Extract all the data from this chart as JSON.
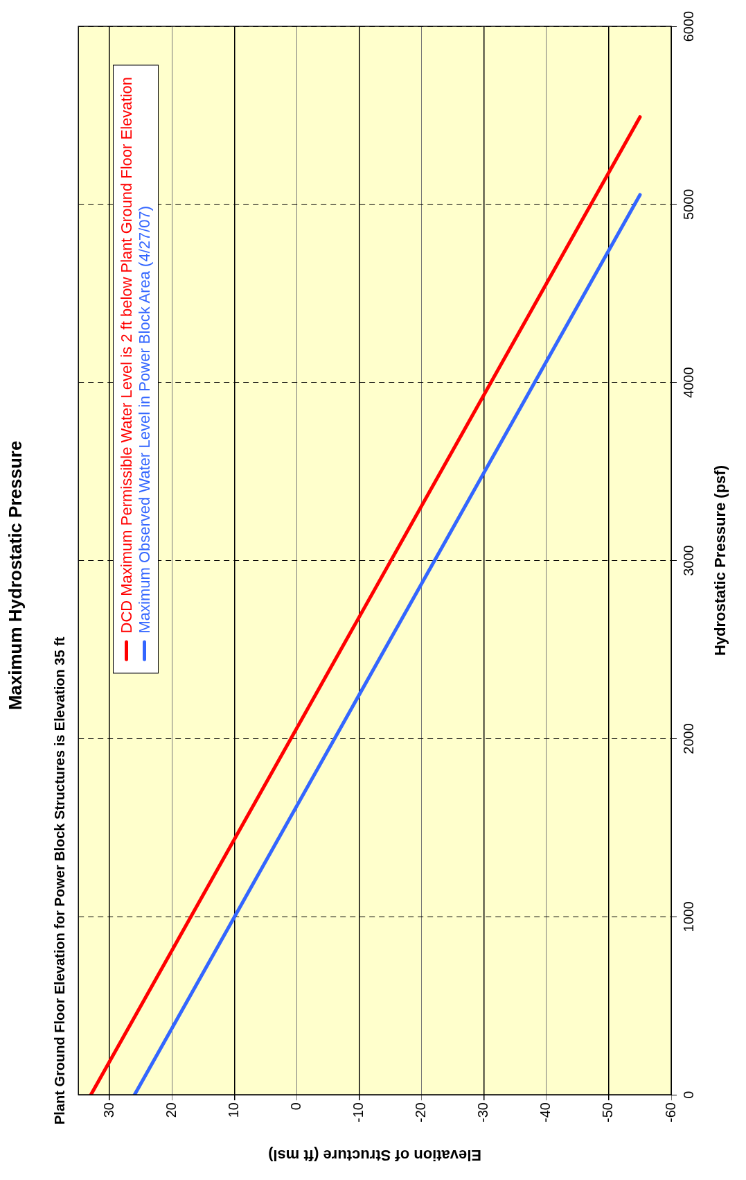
{
  "chart_data": {
    "type": "line",
    "title": "Maximum Hydrostatic Pressure",
    "subtitle": "Plant Ground Floor Elevation for Power Block Structures is Elevation 35 ft",
    "xlabel": "Elevation of Structure (ft msl)",
    "ylabel": "Hydrostatic Pressure (psf)",
    "series": [
      {
        "name": "DCD Maximum Permissible Water Level is 2 ft below Plant Ground Floor Elevation",
        "color": "#ff0000",
        "x": [
          33,
          -55
        ],
        "values": [
          0,
          5491
        ]
      },
      {
        "name": "Maximum Observed Water Level in Power Block Area (4/27/07)",
        "color": "#3366ff",
        "x": [
          26,
          -55
        ],
        "values": [
          0,
          5054
        ]
      }
    ],
    "xlim": [
      35,
      -60
    ],
    "xticks": [
      30,
      20,
      10,
      0,
      -10,
      -20,
      -30,
      -40,
      -50,
      -60
    ],
    "ylim": [
      0,
      6000
    ],
    "yticks": [
      0,
      1000,
      2000,
      3000,
      4000,
      5000,
      6000
    ],
    "grid": true,
    "legend": "top left",
    "marker": "none",
    "line_style": "solid"
  }
}
